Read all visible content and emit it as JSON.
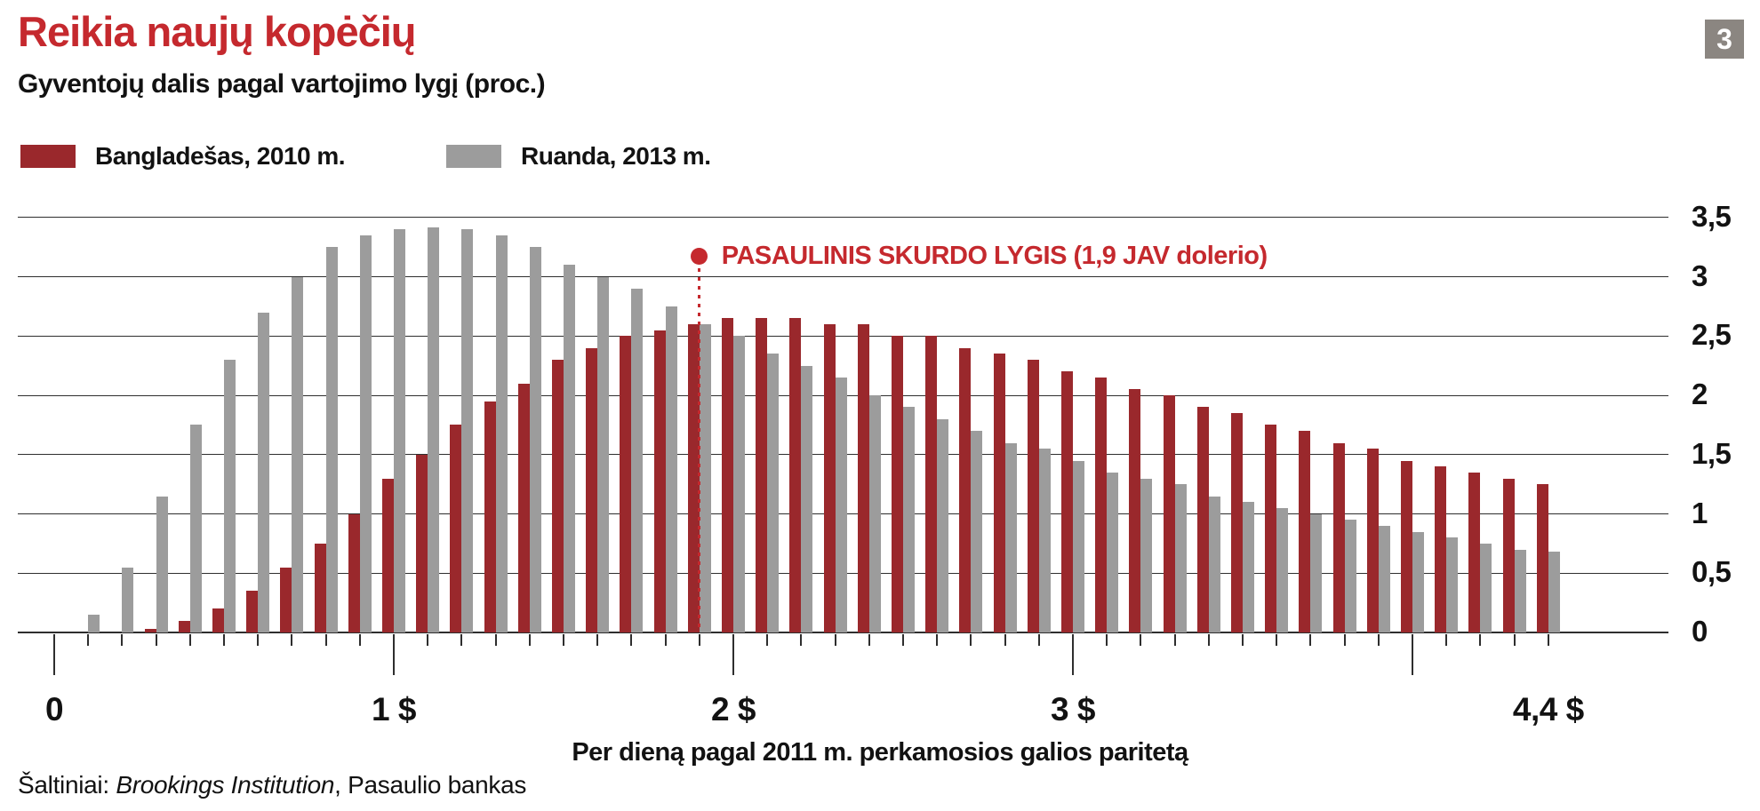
{
  "page": {
    "title": "Reikia naujų kopėčių",
    "subtitle": "Gyventojų dalis pagal vartojimo lygį (proc.)",
    "badge": "3"
  },
  "colors": {
    "title_red": "#c5292e",
    "bangladesh_red": "#9a282c",
    "rwanda_gray": "#9c9c9c",
    "badge_gray": "#8b8681",
    "grid": "#2e2e2e",
    "annotation_red": "#c5292e"
  },
  "legend": [
    {
      "label": "Bangladešas, 2010 m.",
      "color": "#9a282c"
    },
    {
      "label": "Ruanda, 2013 m.",
      "color": "#9c9c9c"
    }
  ],
  "annotation": {
    "label": "PASAULINIS SKURDO LYGIS (1,9 JAV dolerio)",
    "x": 1.9
  },
  "x_axis_title": "Per dieną pagal 2011 m. perkamosios galios paritetą",
  "source": {
    "prefix": "Šaltiniai: ",
    "italic": "Brookings Institution",
    "suffix": ", Pasaulio bankas"
  },
  "chart_data": {
    "type": "bar",
    "title": "Reikia naujų kopėčių",
    "subtitle": "Gyventojų dalis pagal vartojimo lygį (proc.)",
    "xlabel": "Per dieną pagal 2011 m. perkamosios galios paritetą",
    "ylabel": "",
    "ylim": [
      0,
      3.5
    ],
    "grid": "horizontal",
    "legend_position": "top-left",
    "x": [
      0.1,
      0.2,
      0.3,
      0.4,
      0.5,
      0.6,
      0.7,
      0.8,
      0.9,
      1.0,
      1.1,
      1.2,
      1.3,
      1.4,
      1.5,
      1.6,
      1.7,
      1.8,
      1.9,
      2.0,
      2.1,
      2.2,
      2.3,
      2.4,
      2.5,
      2.6,
      2.7,
      2.8,
      2.9,
      3.0,
      3.1,
      3.2,
      3.3,
      3.4,
      3.5,
      3.6,
      3.7,
      3.8,
      3.9,
      4.0,
      4.1,
      4.2,
      4.3,
      4.4
    ],
    "series": [
      {
        "name": "Bangladešas, 2010 m.",
        "color": "#9a282c",
        "values": [
          0,
          0,
          0.03,
          0.1,
          0.2,
          0.35,
          0.55,
          0.75,
          1.0,
          1.3,
          1.5,
          1.75,
          1.95,
          2.1,
          2.3,
          2.4,
          2.5,
          2.55,
          2.6,
          2.65,
          2.65,
          2.65,
          2.6,
          2.6,
          2.5,
          2.5,
          2.4,
          2.35,
          2.3,
          2.2,
          2.15,
          2.05,
          2.0,
          1.9,
          1.85,
          1.75,
          1.7,
          1.6,
          1.55,
          1.45,
          1.4,
          1.35,
          1.3,
          1.25
        ]
      },
      {
        "name": "Ruanda, 2013 m.",
        "color": "#9c9c9c",
        "values": [
          0.15,
          0.55,
          1.15,
          1.75,
          2.3,
          2.7,
          3.0,
          3.25,
          3.35,
          3.4,
          3.42,
          3.4,
          3.35,
          3.25,
          3.1,
          3.0,
          2.9,
          2.75,
          2.6,
          2.5,
          2.35,
          2.25,
          2.15,
          2.0,
          1.9,
          1.8,
          1.7,
          1.6,
          1.55,
          1.45,
          1.35,
          1.3,
          1.25,
          1.15,
          1.1,
          1.05,
          1.0,
          0.95,
          0.9,
          0.85,
          0.8,
          0.75,
          0.7,
          0.68
        ]
      }
    ],
    "y_ticks": [
      0,
      0.5,
      1,
      1.5,
      2,
      2.5,
      3,
      3.5
    ],
    "y_tick_labels": [
      "0",
      "0,5",
      "1",
      "1,5",
      "2",
      "2,5",
      "3",
      "3,5"
    ],
    "x_tick_labels": [
      {
        "value": 0,
        "label": "0"
      },
      {
        "value": 1,
        "label": "1 $"
      },
      {
        "value": 2,
        "label": "2 $"
      },
      {
        "value": 3,
        "label": "3 $"
      },
      {
        "value": 4.4,
        "label": "4,4 $"
      }
    ],
    "x_major_ticks": [
      0,
      1,
      2,
      3,
      4
    ],
    "annotation": {
      "label": "PASAULINIS SKURDO LYGIS (1,9 JAV dolerio)",
      "x": 1.9
    }
  }
}
